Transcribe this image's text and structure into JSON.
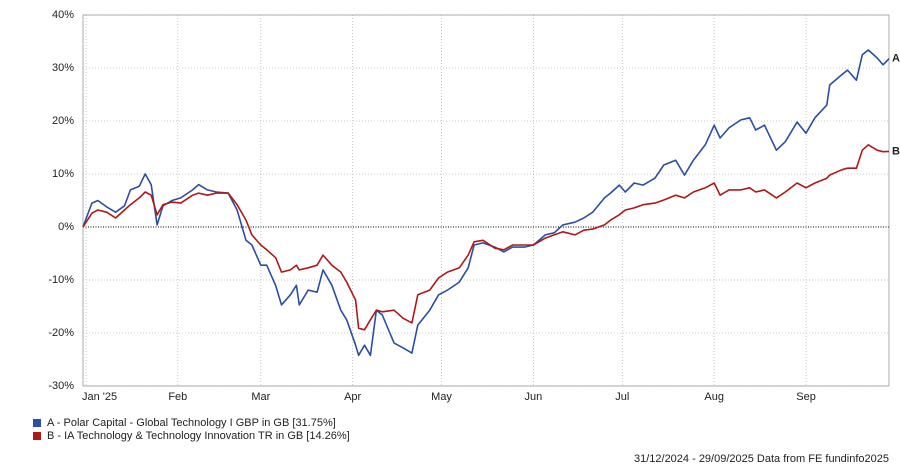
{
  "chart_data": {
    "type": "line",
    "x": [
      0,
      3,
      5,
      8,
      11,
      14,
      16,
      19,
      21,
      23,
      25,
      27,
      30,
      33,
      37,
      39,
      42,
      45,
      49,
      52,
      55,
      57,
      60,
      62,
      65,
      67,
      70,
      72,
      73,
      76,
      79,
      81,
      84,
      87,
      89,
      92,
      93,
      95,
      97,
      99,
      101,
      105,
      108,
      111,
      113,
      117,
      120,
      123,
      127,
      130,
      132,
      135,
      139,
      142,
      145,
      149,
      152,
      156,
      159,
      162,
      166,
      169,
      172,
      176,
      178,
      181,
      183,
      186,
      189,
      193,
      196,
      200,
      203,
      206,
      210,
      213,
      215,
      218,
      222,
      225,
      227,
      230,
      234,
      237,
      241,
      244,
      247,
      251,
      252,
      256,
      258,
      261,
      263,
      265,
      268,
      270,
      272
    ],
    "series": [
      {
        "name": "A - Polar Capital - Global Technology I GBP in GB [31.75%]",
        "end_label": "A",
        "color": "#2a4ea0",
        "values": [
          0,
          4.5,
          5,
          3.8,
          2.8,
          4,
          7,
          7.7,
          10,
          8,
          0.4,
          4,
          5,
          5.5,
          7,
          8,
          7,
          6.6,
          6.4,
          3.2,
          -2.5,
          -3.4,
          -7.2,
          -7.2,
          -11,
          -14.7,
          -12.8,
          -11,
          -14.7,
          -11.9,
          -12.3,
          -8.1,
          -11,
          -15.7,
          -17.5,
          -22.3,
          -24.2,
          -22.3,
          -24.2,
          -15.7,
          -16.6,
          -21.9,
          -22.8,
          -23.8,
          -18.5,
          -15.7,
          -12.8,
          -11.9,
          -10.4,
          -7.7,
          -3.4,
          -3,
          -3.8,
          -4.7,
          -3.8,
          -3.8,
          -3.4,
          -1.5,
          -1.1,
          0.4,
          0.9,
          1.7,
          2.8,
          5.5,
          6.4,
          7.9,
          6.6,
          8.3,
          7.9,
          9.2,
          11.7,
          12.6,
          9.8,
          12.6,
          15.5,
          19.2,
          16.8,
          18.7,
          20.2,
          20.6,
          18.3,
          19.2,
          14.5,
          16.1,
          19.8,
          17.7,
          20.6,
          23,
          26.8,
          28.7,
          29.6,
          27.7,
          32.5,
          33.4,
          31.9,
          30.6,
          31.75
        ]
      },
      {
        "name": "B - IA Technology & Technology Innovation TR in GB [14.26%]",
        "end_label": "B",
        "color": "#b01818",
        "values": [
          0,
          2.6,
          3.2,
          2.8,
          1.7,
          3.2,
          4.2,
          5.5,
          6.6,
          6,
          2.3,
          4.2,
          4.7,
          4.5,
          6,
          6.4,
          6,
          6.4,
          6.4,
          4.2,
          1.3,
          -1.5,
          -3.4,
          -4.3,
          -5.8,
          -8.5,
          -8.1,
          -7.2,
          -8.1,
          -7.7,
          -7.2,
          -5.3,
          -7.2,
          -8.5,
          -10.4,
          -13.8,
          -19.1,
          -19.4,
          -17.5,
          -15.7,
          -16,
          -15.7,
          -17.2,
          -18.1,
          -12.8,
          -11.9,
          -9.6,
          -8.5,
          -7.7,
          -5.3,
          -2.8,
          -2.5,
          -4,
          -4.3,
          -3.4,
          -3.4,
          -3.4,
          -2.1,
          -1.5,
          -0.9,
          -1.5,
          -0.6,
          -0.4,
          0.4,
          1.3,
          2.3,
          3.2,
          3.6,
          4.2,
          4.5,
          5.1,
          6,
          5.5,
          6.6,
          7.4,
          8.3,
          6,
          7,
          7,
          7.4,
          6.6,
          7,
          5.5,
          6.6,
          8.3,
          7.4,
          8.3,
          9.2,
          9.8,
          10.8,
          11.1,
          11.1,
          14.5,
          15.5,
          14.5,
          14.2,
          14.26
        ]
      }
    ],
    "xlim": [
      0,
      272
    ],
    "xticks": [
      {
        "value": 1,
        "label": "Jan '25"
      },
      {
        "value": 32,
        "label": "Feb"
      },
      {
        "value": 60,
        "label": "Mar"
      },
      {
        "value": 91,
        "label": "Apr"
      },
      {
        "value": 121,
        "label": "May"
      },
      {
        "value": 152,
        "label": "Jun"
      },
      {
        "value": 182,
        "label": "Jul"
      },
      {
        "value": 213,
        "label": "Aug"
      },
      {
        "value": 244,
        "label": "Sep"
      }
    ],
    "ylim": [
      -30,
      40
    ],
    "yticks": [
      {
        "value": -30,
        "label": "-30%"
      },
      {
        "value": -20,
        "label": "-20%"
      },
      {
        "value": -10,
        "label": "-10%"
      },
      {
        "value": 0,
        "label": "0%"
      },
      {
        "value": 10,
        "label": "10%"
      },
      {
        "value": 20,
        "label": "20%"
      },
      {
        "value": 30,
        "label": "30%"
      },
      {
        "value": 40,
        "label": "40%"
      }
    ],
    "grid": true,
    "source": "31/12/2024 - 29/09/2025 Data from FE fundinfo2025"
  }
}
